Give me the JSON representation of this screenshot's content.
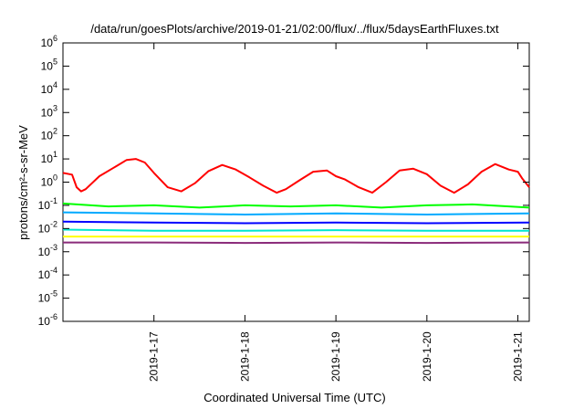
{
  "chart_data": {
    "type": "line",
    "title": "/data/run/goesPlots/archive/2019-01-21/02:00/flux/../flux/5daysEarthFluxes.txt",
    "xlabel": "Coordinated Universal Time (UTC)",
    "ylabel": "protons/cm²-s-sr-MeV",
    "yscale": "log",
    "ylim": [
      1e-06,
      1000000.0
    ],
    "xlim": [
      "2019-01-16T00:00",
      "2019-01-21T03:00"
    ],
    "x_ticks": [
      "2019-1-17",
      "2019-1-18",
      "2019-1-19",
      "2019-1-20",
      "2019-1-21"
    ],
    "grid": false,
    "legend": "none",
    "series": [
      {
        "color": "#ff0000",
        "values": [
          [
            0,
            2.5
          ],
          [
            0.1,
            2.1
          ],
          [
            0.15,
            0.6
          ],
          [
            0.2,
            0.4
          ],
          [
            0.25,
            0.5
          ],
          [
            0.4,
            1.8
          ],
          [
            0.55,
            4
          ],
          [
            0.7,
            9
          ],
          [
            0.8,
            10
          ],
          [
            0.9,
            7
          ],
          [
            1.0,
            2.5
          ],
          [
            1.15,
            0.6
          ],
          [
            1.3,
            0.4
          ],
          [
            1.45,
            0.9
          ],
          [
            1.6,
            3
          ],
          [
            1.75,
            5.5
          ],
          [
            1.9,
            3.5
          ],
          [
            2.05,
            1.6
          ],
          [
            2.2,
            0.7
          ],
          [
            2.35,
            0.35
          ],
          [
            2.45,
            0.5
          ],
          [
            2.6,
            1.2
          ],
          [
            2.75,
            2.8
          ],
          [
            2.9,
            3.2
          ],
          [
            3.0,
            1.8
          ],
          [
            3.1,
            1.3
          ],
          [
            3.25,
            0.6
          ],
          [
            3.4,
            0.35
          ],
          [
            3.55,
            1.0
          ],
          [
            3.7,
            3.2
          ],
          [
            3.85,
            3.8
          ],
          [
            4.0,
            2.2
          ],
          [
            4.15,
            0.7
          ],
          [
            4.3,
            0.35
          ],
          [
            4.45,
            0.8
          ],
          [
            4.6,
            2.8
          ],
          [
            4.75,
            6
          ],
          [
            4.9,
            3.5
          ],
          [
            5.0,
            2.8
          ],
          [
            5.05,
            1.4
          ],
          [
            5.125,
            0.6
          ]
        ]
      },
      {
        "color": "#00ff00",
        "values": [
          [
            0,
            0.12
          ],
          [
            0.5,
            0.09
          ],
          [
            1,
            0.1
          ],
          [
            1.5,
            0.08
          ],
          [
            2,
            0.1
          ],
          [
            2.5,
            0.09
          ],
          [
            3,
            0.1
          ],
          [
            3.5,
            0.08
          ],
          [
            4,
            0.1
          ],
          [
            4.5,
            0.11
          ],
          [
            5.125,
            0.08
          ]
        ]
      },
      {
        "color": "#00aaff",
        "values": [
          [
            0,
            0.05
          ],
          [
            1,
            0.045
          ],
          [
            2,
            0.04
          ],
          [
            3,
            0.045
          ],
          [
            4,
            0.04
          ],
          [
            5.125,
            0.045
          ]
        ]
      },
      {
        "color": "#0000ff",
        "values": [
          [
            0,
            0.02
          ],
          [
            1,
            0.018
          ],
          [
            2,
            0.017
          ],
          [
            3,
            0.018
          ],
          [
            4,
            0.017
          ],
          [
            5.125,
            0.018
          ]
        ]
      },
      {
        "color": "#00e6d0",
        "values": [
          [
            0,
            0.009
          ],
          [
            1,
            0.008
          ],
          [
            2,
            0.008
          ],
          [
            3,
            0.0085
          ],
          [
            4,
            0.008
          ],
          [
            5.125,
            0.008
          ]
        ]
      },
      {
        "color": "#ffff00",
        "values": [
          [
            0,
            0.0045
          ],
          [
            5.125,
            0.0045
          ]
        ]
      },
      {
        "color": "#8b2b7a",
        "values": [
          [
            0,
            0.0025
          ],
          [
            1,
            0.0025
          ],
          [
            2,
            0.0024
          ],
          [
            3,
            0.0025
          ],
          [
            4,
            0.0024
          ],
          [
            5.125,
            0.0025
          ]
        ]
      }
    ]
  }
}
